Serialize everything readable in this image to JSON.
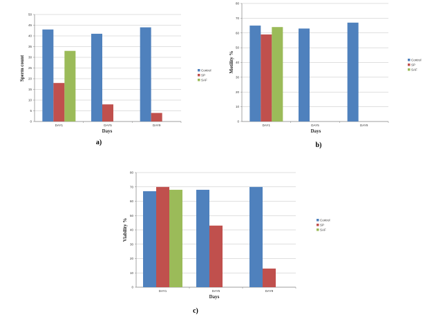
{
  "colors": {
    "Control": "#4F81BD",
    "SP": "#C0504D",
    "SAF": "#9BBB59",
    "grid": "#BFBFBF",
    "axis": "#7F7F7F"
  },
  "chart_data": [
    {
      "type": "bar",
      "panel_label": "a)",
      "categories": [
        "DAY1",
        "DAY5",
        "DAY9"
      ],
      "series": [
        {
          "name": "Control",
          "values": [
            43,
            41,
            44
          ]
        },
        {
          "name": "SP",
          "values": [
            18,
            8,
            4
          ]
        },
        {
          "name": "SAF",
          "values": [
            33,
            null,
            null
          ]
        }
      ],
      "xlabel": "Days",
      "ylabel": "Sperm count",
      "ylim": [
        0,
        50
      ],
      "ticks": [
        0,
        5,
        10,
        15,
        20,
        25,
        30,
        35,
        40,
        45,
        50
      ],
      "legend": "right"
    },
    {
      "type": "bar",
      "panel_label": "b)",
      "categories": [
        "DAY1",
        "DAY5",
        "DAY9"
      ],
      "series": [
        {
          "name": "Control",
          "values": [
            65,
            63,
            67
          ]
        },
        {
          "name": "SP",
          "values": [
            59,
            null,
            null
          ]
        },
        {
          "name": "SAF",
          "values": [
            64,
            null,
            null
          ]
        }
      ],
      "xlabel": "Days",
      "ylabel": "Motility %",
      "ylim": [
        0,
        80
      ],
      "ticks": [
        0,
        10,
        20,
        30,
        40,
        50,
        60,
        70,
        80
      ],
      "legend": "right"
    },
    {
      "type": "bar",
      "panel_label": "c)",
      "categories": [
        "DAY1",
        "DAY5",
        "DAY9"
      ],
      "series": [
        {
          "name": "Control",
          "values": [
            67,
            68,
            70
          ]
        },
        {
          "name": "SP",
          "values": [
            70,
            43,
            13
          ]
        },
        {
          "name": "SAF",
          "values": [
            68,
            null,
            null
          ]
        }
      ],
      "xlabel": "Days",
      "ylabel": "Viability %",
      "ylim": [
        0,
        80
      ],
      "ticks": [
        0,
        10,
        20,
        30,
        40,
        50,
        60,
        70,
        80
      ],
      "legend": "right"
    }
  ]
}
